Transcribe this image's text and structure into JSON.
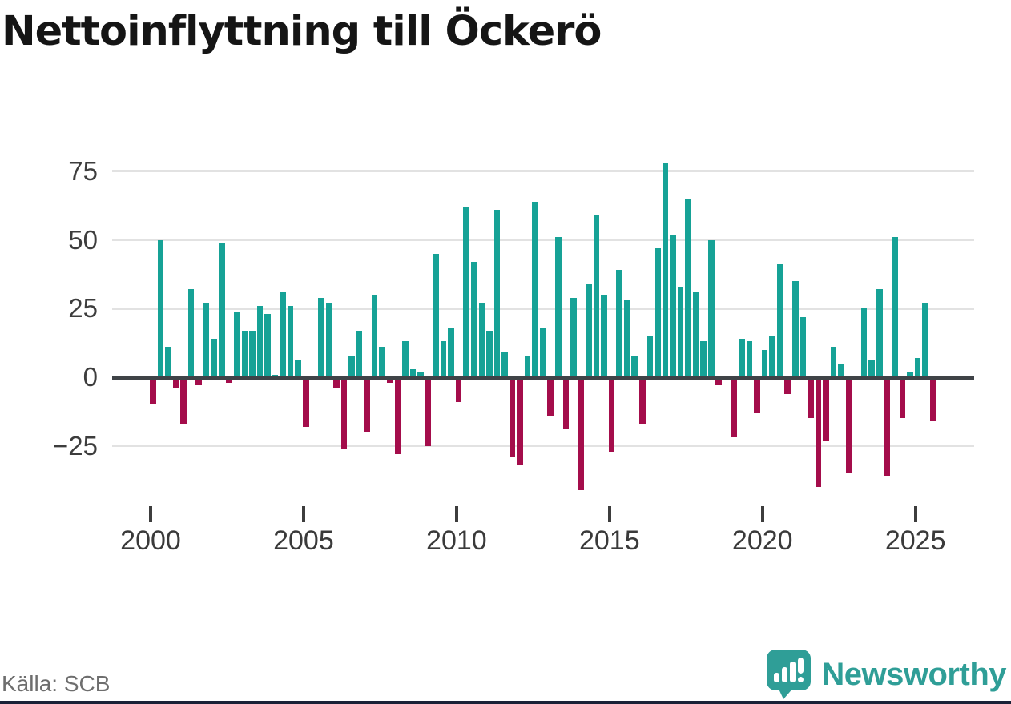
{
  "title": "Nettoinflyttning till Öckerö",
  "source": "Källa: SCB",
  "brand": {
    "name": "Newsworthy",
    "color": "#2f9e97"
  },
  "colors": {
    "positive_bar": "#16a296",
    "negative_bar": "#a40d4b",
    "zero_line": "#3f4347",
    "gridline": "#e2e2e2",
    "axis_text": "#3d3d3d",
    "bottom_strip": "#1a2137"
  },
  "chart_data": {
    "type": "bar",
    "title": "Nettoinflyttning till Öckerö",
    "frequency": "quarterly",
    "start_year": 2000,
    "start_quarter": 1,
    "values": [
      -10,
      50,
      11,
      -4,
      -17,
      32,
      -3,
      27,
      14,
      49,
      -2,
      24,
      17,
      17,
      26,
      23,
      1,
      31,
      26,
      6,
      -18,
      0,
      29,
      27,
      -4,
      -26,
      8,
      17,
      -20,
      30,
      11,
      -2,
      -28,
      13,
      3,
      2,
      -25,
      45,
      13,
      18,
      -9,
      62,
      42,
      27,
      17,
      61,
      9,
      -29,
      -32,
      8,
      64,
      18,
      -14,
      51,
      -19,
      29,
      -41,
      34,
      59,
      30,
      -27,
      39,
      28,
      8,
      -17,
      15,
      47,
      78,
      52,
      33,
      65,
      31,
      13,
      50,
      -3,
      -1,
      -22,
      14,
      13,
      -13,
      10,
      15,
      41,
      -6,
      35,
      22,
      -15,
      -40,
      -23,
      11,
      5,
      -35,
      -1,
      25,
      6,
      32,
      -36,
      51,
      -15,
      2,
      7,
      27,
      -16
    ],
    "y_axis_ticks": [
      75,
      50,
      25,
      0,
      -25
    ],
    "x_axis_tick_labels": [
      "2000",
      "2005",
      "2010",
      "2015",
      "2020",
      "2025"
    ],
    "x_axis_tick_quarter_indices": [
      0,
      20,
      40,
      60,
      80,
      100
    ],
    "ylim": [
      -45,
      80
    ],
    "grid": true,
    "legend": "none"
  }
}
